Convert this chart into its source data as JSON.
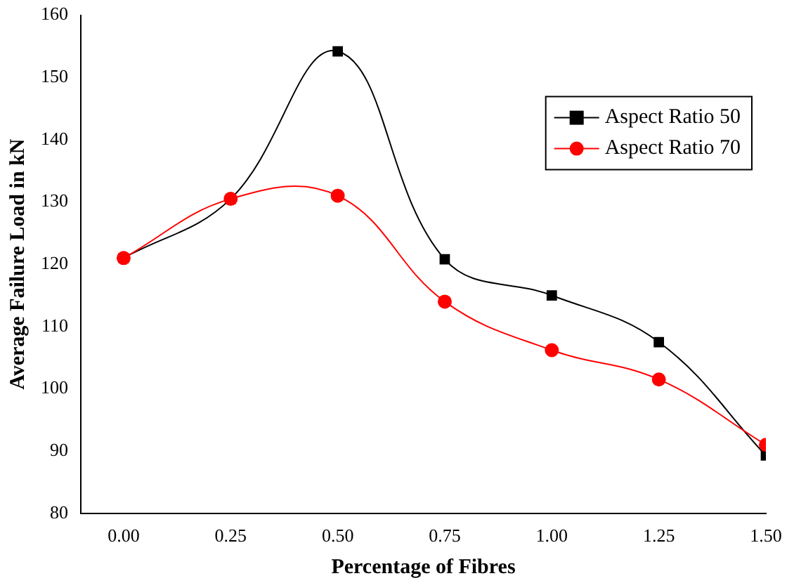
{
  "chart_data": {
    "type": "line",
    "xlabel": "Percentage of Fibres",
    "ylabel": "Average Failure Load in kN",
    "x": [
      0,
      0.25,
      0.5,
      0.75,
      1,
      1.25,
      1.5
    ],
    "series": [
      {
        "name": "Aspect Ratio 50",
        "color": "#000000",
        "marker": "square",
        "values": [
          121,
          130.5,
          154.2,
          120.8,
          115,
          107.5,
          89.3
        ]
      },
      {
        "name": "Aspect Ratio 70",
        "color": "#ff0000",
        "marker": "circle",
        "values": [
          121,
          130.5,
          131,
          114,
          106.2,
          101.5,
          91
        ]
      }
    ],
    "xlim": [
      -0.1,
      1.5
    ],
    "xticks": [
      {
        "value": 0,
        "label": "0.00"
      },
      {
        "value": 0.25,
        "label": "0.25"
      },
      {
        "value": 0.5,
        "label": "0.50"
      },
      {
        "value": 0.75,
        "label": "0.75"
      },
      {
        "value": 1,
        "label": "1.00"
      },
      {
        "value": 1.25,
        "label": "1.25"
      },
      {
        "value": 1.5,
        "label": "1.50"
      }
    ],
    "ylim": [
      80,
      160
    ],
    "yticks": [
      80,
      90,
      100,
      110,
      120,
      130,
      140,
      150,
      160
    ],
    "grid": false,
    "legend": "top right"
  }
}
